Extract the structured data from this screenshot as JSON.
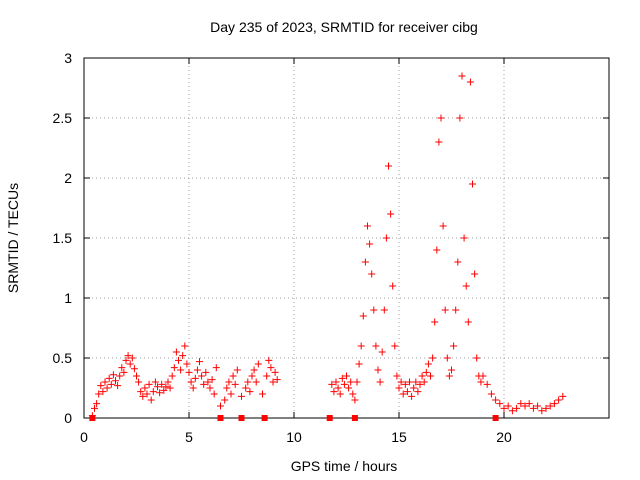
{
  "chart_data": {
    "type": "scatter",
    "title": "Day 235 of 2023, SRMTID for receiver cibg",
    "xlabel": "GPS time / hours",
    "ylabel": "SRMTID / TECUs",
    "xlim": [
      0,
      25
    ],
    "ylim": [
      0,
      3
    ],
    "xticks": [
      0,
      5,
      10,
      15,
      20
    ],
    "xtick_labels": [
      "0",
      "5",
      "10",
      "15",
      "20"
    ],
    "yticks": [
      0,
      0.5,
      1,
      1.5,
      2,
      2.5,
      3
    ],
    "ytick_labels": [
      "0",
      "0.5",
      "1",
      "1.5",
      "2",
      "2.5",
      "3"
    ],
    "grid": true,
    "marker": "+",
    "marker_color": "#ff0000",
    "series": [
      {
        "name": "SRMTID",
        "points": [
          [
            0.4,
            0.02
          ],
          [
            0.5,
            0.08
          ],
          [
            0.6,
            0.12
          ],
          [
            0.7,
            0.2
          ],
          [
            0.8,
            0.27
          ],
          [
            0.9,
            0.22
          ],
          [
            1.0,
            0.3
          ],
          [
            1.1,
            0.25
          ],
          [
            1.2,
            0.33
          ],
          [
            1.3,
            0.28
          ],
          [
            1.4,
            0.36
          ],
          [
            1.5,
            0.31
          ],
          [
            1.6,
            0.27
          ],
          [
            1.7,
            0.35
          ],
          [
            1.8,
            0.42
          ],
          [
            1.9,
            0.38
          ],
          [
            2.0,
            0.48
          ],
          [
            2.1,
            0.52
          ],
          [
            2.2,
            0.45
          ],
          [
            2.3,
            0.5
          ],
          [
            2.4,
            0.41
          ],
          [
            2.5,
            0.35
          ],
          [
            2.6,
            0.3
          ],
          [
            2.7,
            0.22
          ],
          [
            2.8,
            0.18
          ],
          [
            2.9,
            0.25
          ],
          [
            3.0,
            0.2
          ],
          [
            3.1,
            0.28
          ],
          [
            3.2,
            0.15
          ],
          [
            3.3,
            0.22
          ],
          [
            3.4,
            0.3
          ],
          [
            3.5,
            0.26
          ],
          [
            3.6,
            0.21
          ],
          [
            3.7,
            0.28
          ],
          [
            3.8,
            0.23
          ],
          [
            3.9,
            0.26
          ],
          [
            4.0,
            0.3
          ],
          [
            4.1,
            0.25
          ],
          [
            4.2,
            0.35
          ],
          [
            4.3,
            0.42
          ],
          [
            4.4,
            0.55
          ],
          [
            4.5,
            0.48
          ],
          [
            4.6,
            0.4
          ],
          [
            4.7,
            0.52
          ],
          [
            4.8,
            0.6
          ],
          [
            4.9,
            0.45
          ],
          [
            5.0,
            0.38
          ],
          [
            5.1,
            0.3
          ],
          [
            5.2,
            0.25
          ],
          [
            5.3,
            0.33
          ],
          [
            5.4,
            0.4
          ],
          [
            5.5,
            0.47
          ],
          [
            5.6,
            0.35
          ],
          [
            5.7,
            0.28
          ],
          [
            5.8,
            0.38
          ],
          [
            5.9,
            0.3
          ],
          [
            6.0,
            0.25
          ],
          [
            6.1,
            0.32
          ],
          [
            6.2,
            0.2
          ],
          [
            6.3,
            0.42
          ],
          [
            6.5,
            0.1
          ],
          [
            6.7,
            0.15
          ],
          [
            6.8,
            0.25
          ],
          [
            6.9,
            0.3
          ],
          [
            7.0,
            0.2
          ],
          [
            7.1,
            0.35
          ],
          [
            7.2,
            0.28
          ],
          [
            7.3,
            0.4
          ],
          [
            7.5,
            0.18
          ],
          [
            7.7,
            0.25
          ],
          [
            7.8,
            0.3
          ],
          [
            7.9,
            0.22
          ],
          [
            8.0,
            0.35
          ],
          [
            8.1,
            0.4
          ],
          [
            8.2,
            0.3
          ],
          [
            8.3,
            0.45
          ],
          [
            8.5,
            0.2
          ],
          [
            8.7,
            0.35
          ],
          [
            8.8,
            0.48
          ],
          [
            8.9,
            0.42
          ],
          [
            9.0,
            0.3
          ],
          [
            9.1,
            0.38
          ],
          [
            9.2,
            0.32
          ],
          [
            11.8,
            0.28
          ],
          [
            11.9,
            0.22
          ],
          [
            12.0,
            0.3
          ],
          [
            12.1,
            0.25
          ],
          [
            12.2,
            0.2
          ],
          [
            12.3,
            0.33
          ],
          [
            12.4,
            0.28
          ],
          [
            12.5,
            0.35
          ],
          [
            12.6,
            0.25
          ],
          [
            12.7,
            0.3
          ],
          [
            12.8,
            0.2
          ],
          [
            12.9,
            0.15
          ],
          [
            13.0,
            0.3
          ],
          [
            13.1,
            0.45
          ],
          [
            13.2,
            0.6
          ],
          [
            13.3,
            0.85
          ],
          [
            13.4,
            1.3
          ],
          [
            13.5,
            1.6
          ],
          [
            13.6,
            1.45
          ],
          [
            13.7,
            1.2
          ],
          [
            13.8,
            0.9
          ],
          [
            13.9,
            0.6
          ],
          [
            14.0,
            0.4
          ],
          [
            14.1,
            0.3
          ],
          [
            14.2,
            0.55
          ],
          [
            14.3,
            0.9
          ],
          [
            14.4,
            1.5
          ],
          [
            14.5,
            2.1
          ],
          [
            14.6,
            1.7
          ],
          [
            14.7,
            1.1
          ],
          [
            14.8,
            0.6
          ],
          [
            14.9,
            0.35
          ],
          [
            15.0,
            0.25
          ],
          [
            15.1,
            0.3
          ],
          [
            15.2,
            0.2
          ],
          [
            15.3,
            0.28
          ],
          [
            15.4,
            0.22
          ],
          [
            15.5,
            0.3
          ],
          [
            15.6,
            0.18
          ],
          [
            15.7,
            0.25
          ],
          [
            15.8,
            0.3
          ],
          [
            15.9,
            0.22
          ],
          [
            16.0,
            0.28
          ],
          [
            16.1,
            0.35
          ],
          [
            16.2,
            0.3
          ],
          [
            16.3,
            0.38
          ],
          [
            16.4,
            0.45
          ],
          [
            16.5,
            0.35
          ],
          [
            16.6,
            0.5
          ],
          [
            16.7,
            0.8
          ],
          [
            16.8,
            1.4
          ],
          [
            16.9,
            2.3
          ],
          [
            17.0,
            2.5
          ],
          [
            17.1,
            1.6
          ],
          [
            17.2,
            0.9
          ],
          [
            17.3,
            0.5
          ],
          [
            17.4,
            0.35
          ],
          [
            17.5,
            0.4
          ],
          [
            17.6,
            0.6
          ],
          [
            17.7,
            0.9
          ],
          [
            17.8,
            1.3
          ],
          [
            17.9,
            2.5
          ],
          [
            18.0,
            2.85
          ],
          [
            18.1,
            1.5
          ],
          [
            18.2,
            1.1
          ],
          [
            18.3,
            0.8
          ],
          [
            18.4,
            2.8
          ],
          [
            18.5,
            1.95
          ],
          [
            18.6,
            1.2
          ],
          [
            18.7,
            0.5
          ],
          [
            18.8,
            0.35
          ],
          [
            18.9,
            0.3
          ],
          [
            19.0,
            0.35
          ],
          [
            19.2,
            0.28
          ],
          [
            19.4,
            0.2
          ],
          [
            19.6,
            0.15
          ],
          [
            19.8,
            0.12
          ],
          [
            20.0,
            0.08
          ],
          [
            20.2,
            0.1
          ],
          [
            20.4,
            0.06
          ],
          [
            20.6,
            0.08
          ],
          [
            20.8,
            0.12
          ],
          [
            21.0,
            0.1
          ],
          [
            21.2,
            0.12
          ],
          [
            21.4,
            0.08
          ],
          [
            21.6,
            0.1
          ],
          [
            21.8,
            0.06
          ],
          [
            22.0,
            0.08
          ],
          [
            22.2,
            0.1
          ],
          [
            22.4,
            0.12
          ],
          [
            22.6,
            0.15
          ],
          [
            22.8,
            0.18
          ]
        ]
      }
    ],
    "data_gaps": [
      0.4,
      6.5,
      7.5,
      8.6,
      11.7,
      12.9,
      19.6
    ]
  }
}
